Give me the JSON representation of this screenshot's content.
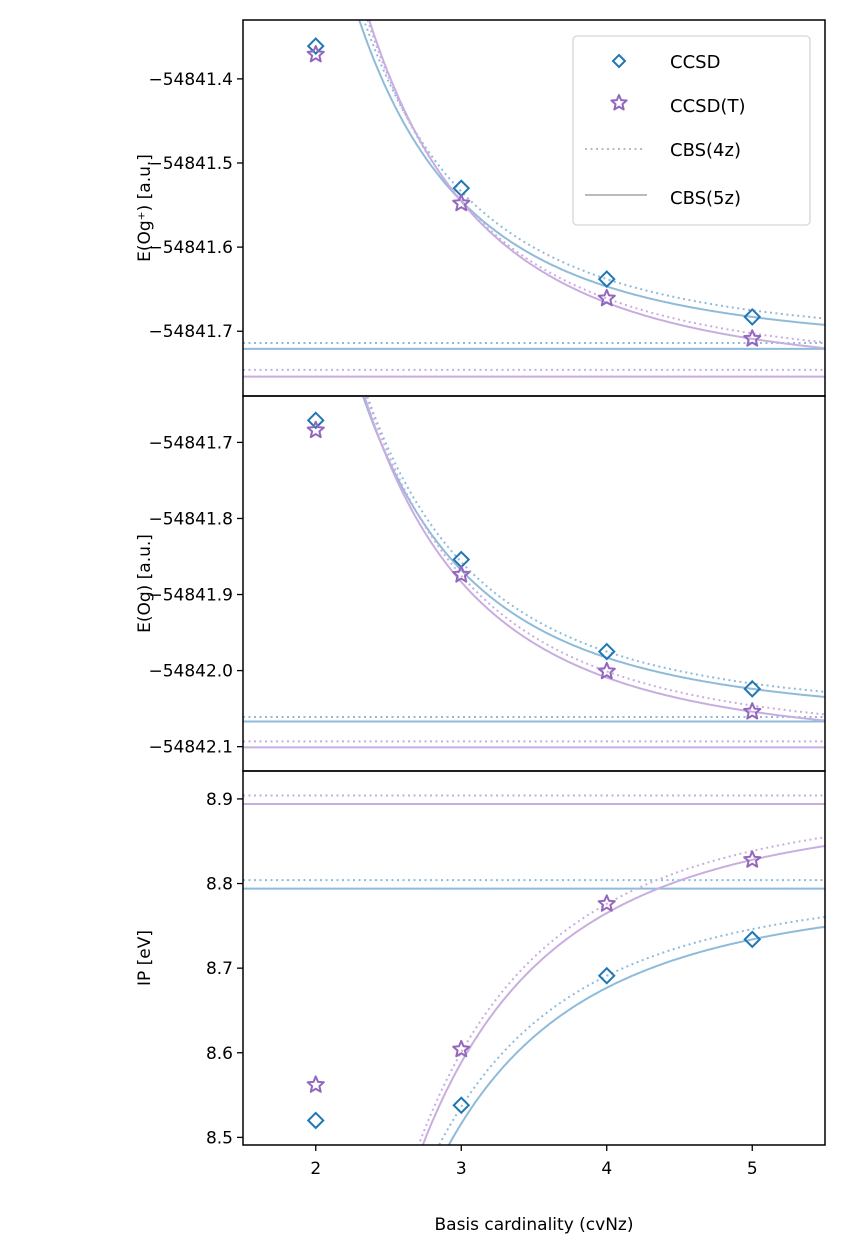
{
  "chart_data": {
    "type": "scatter",
    "xlabel": "Basis cardinality (cvNz)",
    "xlim": [
      1.5,
      5.5
    ],
    "xticks": [
      2,
      3,
      4,
      5
    ],
    "xtick_labels": [
      "2",
      "3",
      "4",
      "5"
    ],
    "legend": {
      "placement": "top-right",
      "entries": [
        "CCSD",
        "CCSD(T)",
        "CBS(4z)",
        "CBS(5z)"
      ]
    },
    "colors": {
      "CCSD": "#1f77b4",
      "CCSD(T)": "#9467bd",
      "legend_line": "#bbbbbb"
    },
    "grid": false,
    "panels": [
      {
        "ylabel": "E(Og⁺) [a.u.]",
        "ylim": [
          -54841.777,
          -54841.33
        ],
        "yticks": [
          -54841.4,
          -54841.5,
          -54841.6,
          -54841.7
        ],
        "ytick_labels": [
          "−54841.4",
          "−54841.5",
          "−54841.6",
          "−54841.7"
        ],
        "series": [
          {
            "name": "CCSD",
            "x": [
              2,
              3,
              4,
              5
            ],
            "y": [
              -54841.361,
              -54841.53,
              -54841.638,
              -54841.683
            ],
            "cbs4z": -54841.714,
            "cbs5z": -54841.721
          },
          {
            "name": "CCSD(T)",
            "x": [
              2,
              3,
              4,
              5
            ],
            "y": [
              -54841.371,
              -54841.548,
              -54841.661,
              -54841.709
            ],
            "cbs4z": -54841.746,
            "cbs5z": -54841.754
          }
        ]
      },
      {
        "ylabel": "E(Og) [a.u.]",
        "ylim": [
          -54842.132,
          -54841.639
        ],
        "yticks": [
          -54841.7,
          -54841.8,
          -54841.9,
          -54842.0,
          -54842.1
        ],
        "ytick_labels": [
          "−54841.7",
          "−54841.8",
          "−54841.9",
          "−54842.0",
          "−54842.1"
        ],
        "series": [
          {
            "name": "CCSD",
            "x": [
              2,
              3,
              4,
              5
            ],
            "y": [
              -54841.671,
              -54841.854,
              -54841.975,
              -54842.024
            ],
            "cbs4z": -54842.061,
            "cbs5z": -54842.067
          },
          {
            "name": "CCSD(T)",
            "x": [
              2,
              3,
              4,
              5
            ],
            "y": [
              -54841.684,
              -54841.874,
              -54842.001,
              -54842.054
            ],
            "cbs4z": -54842.093,
            "cbs5z": -54842.101
          }
        ]
      },
      {
        "ylabel": "IP [eV]",
        "ylim": [
          8.491,
          8.933
        ],
        "yticks": [
          8.5,
          8.6,
          8.7,
          8.8,
          8.9
        ],
        "ytick_labels": [
          "8.5",
          "8.6",
          "8.7",
          "8.8",
          "8.9"
        ],
        "series": [
          {
            "name": "CCSD",
            "x": [
              2,
              3,
              4,
              5
            ],
            "y": [
              8.52,
              8.538,
              8.691,
              8.734
            ],
            "cbs4z": 8.804,
            "cbs5z": 8.794
          },
          {
            "name": "CCSD(T)",
            "x": [
              2,
              3,
              4,
              5
            ],
            "y": [
              8.562,
              8.604,
              8.776,
              8.828
            ],
            "cbs4z": 8.904,
            "cbs5z": 8.894
          }
        ]
      }
    ]
  }
}
